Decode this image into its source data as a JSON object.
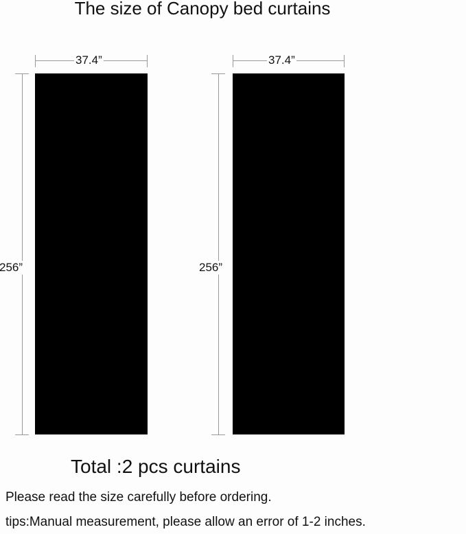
{
  "title": "The size of Canopy bed curtains",
  "panels": [
    {
      "width_label": "37.4”",
      "height_label": "256”"
    },
    {
      "width_label": "37.4”",
      "height_label": "256”"
    }
  ],
  "panel_color": "#000000",
  "total": "Total :2 pcs curtains",
  "notes": [
    "Please read the size carefully before ordering.",
    "tips:Manual measurement, please allow  an error of 1-2 inches."
  ]
}
